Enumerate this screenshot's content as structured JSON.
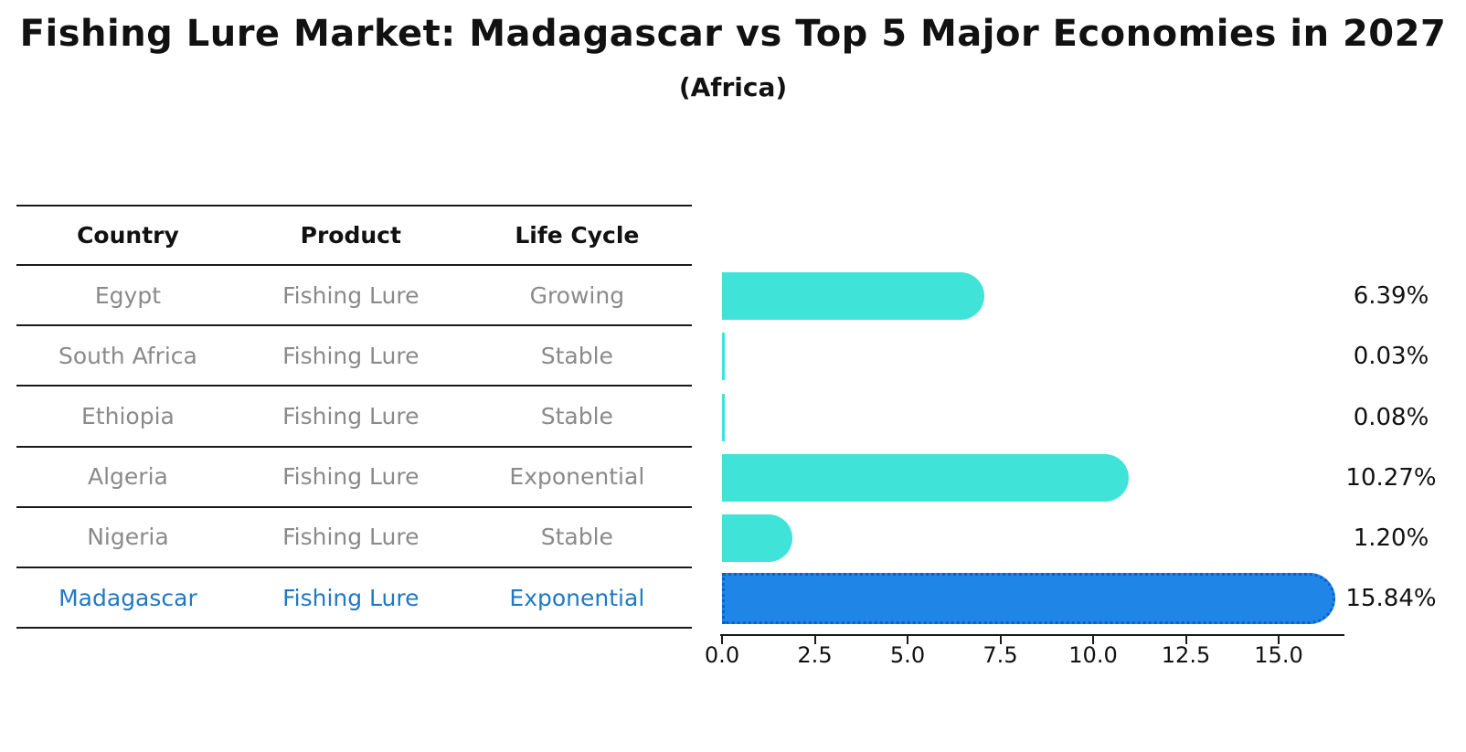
{
  "title": "Fishing Lure Market: Madagascar vs Top 5 Major Economies in 2027",
  "subtitle": "(Africa)",
  "table": {
    "headers": [
      "Country",
      "Product",
      "Life Cycle"
    ],
    "rows": [
      {
        "country": "Egypt",
        "product": "Fishing Lure",
        "life_cycle": "Growing",
        "value": 6.39,
        "value_label": "6.39%",
        "highlight": false
      },
      {
        "country": "South Africa",
        "product": "Fishing Lure",
        "life_cycle": "Stable",
        "value": 0.03,
        "value_label": "0.03%",
        "highlight": false
      },
      {
        "country": "Ethiopia",
        "product": "Fishing Lure",
        "life_cycle": "Stable",
        "value": 0.08,
        "value_label": "0.08%",
        "highlight": false
      },
      {
        "country": "Algeria",
        "product": "Fishing Lure",
        "life_cycle": "Exponential",
        "value": 10.27,
        "value_label": "10.27%",
        "highlight": false
      },
      {
        "country": "Nigeria",
        "product": "Fishing Lure",
        "life_cycle": "Stable",
        "value": 1.2,
        "value_label": "1.20%",
        "highlight": false
      },
      {
        "country": "Madagascar",
        "product": "Fishing Lure",
        "life_cycle": "Exponential",
        "value": 15.84,
        "value_label": "15.84%",
        "highlight": true
      }
    ]
  },
  "chart_data": {
    "type": "bar",
    "orientation": "horizontal",
    "title": "Fishing Lure Market: Madagascar vs Top 5 Major Economies in 2027",
    "subtitle": "(Africa)",
    "categories": [
      "Egypt",
      "South Africa",
      "Ethiopia",
      "Algeria",
      "Nigeria",
      "Madagascar"
    ],
    "values": [
      6.39,
      0.03,
      0.08,
      10.27,
      1.2,
      15.84
    ],
    "value_labels": [
      "6.39%",
      "0.03%",
      "0.08%",
      "10.27%",
      "1.20%",
      "15.84%"
    ],
    "xticks": [
      "0.0",
      "2.5",
      "5.0",
      "7.5",
      "10.0",
      "12.5",
      "15.0"
    ],
    "xlim": [
      0,
      16.8
    ],
    "grid": false,
    "legend": "none",
    "colors": {
      "bar_default": "#40E3D8",
      "bar_highlight": "#1F86E8",
      "bar_highlight_border": "#0E5FCE",
      "row_text": "#8A8A8A",
      "highlight_text": "#2179C5",
      "axis_text": "#111111"
    }
  }
}
